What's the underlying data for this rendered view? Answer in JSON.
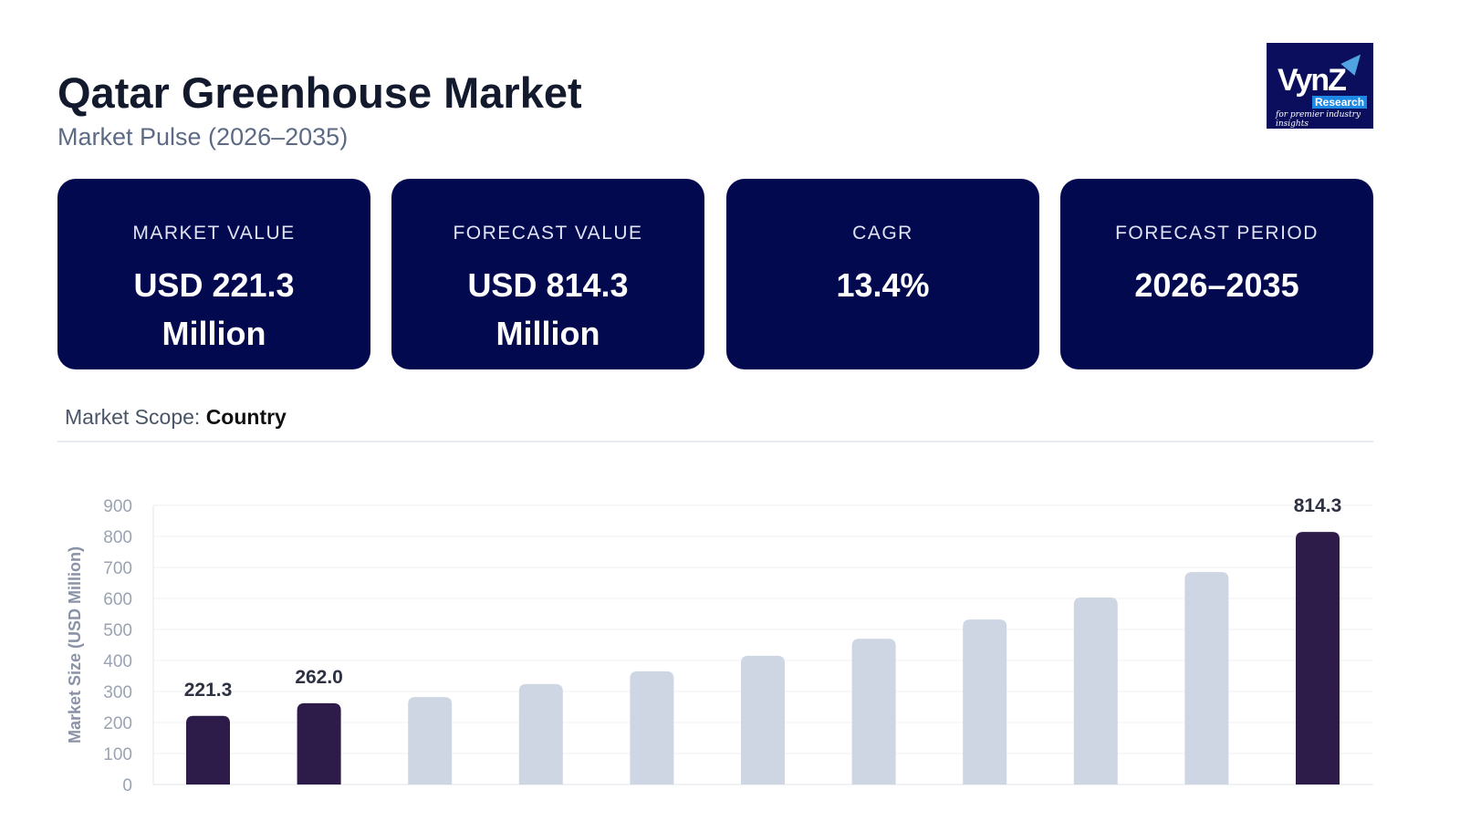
{
  "header": {
    "title": "Qatar Greenhouse Market",
    "subtitle": "Market Pulse (2026–2035)"
  },
  "logo": {
    "brand": "VynZ",
    "sub": "Research",
    "tagline": "for premier industry insights"
  },
  "cards": [
    {
      "label": "MARKET VALUE",
      "value": "USD 221.3",
      "value2": "Million"
    },
    {
      "label": "FORECAST VALUE",
      "value": "USD 814.3",
      "value2": "Million"
    },
    {
      "label": "CAGR",
      "value": "13.4%",
      "value2": ""
    },
    {
      "label": "FORECAST PERIOD",
      "value": "2026–2035",
      "value2": ""
    }
  ],
  "scope": {
    "label": "Market Scope:",
    "value": "Country"
  },
  "chart_data": {
    "type": "bar",
    "title": "",
    "xlabel": "",
    "ylabel": "Market Size (USD Million)",
    "ylim": [
      0,
      900
    ],
    "yticks": [
      "0",
      "100",
      "200",
      "300",
      "400",
      "500",
      "600",
      "700",
      "800",
      "900"
    ],
    "values": [
      221.3,
      262.0,
      282,
      324,
      365,
      415,
      470,
      532,
      603,
      685,
      814.3
    ],
    "highlight": [
      true,
      true,
      false,
      false,
      false,
      false,
      false,
      false,
      false,
      false,
      true
    ],
    "data_labels": [
      "221.3",
      "262.0",
      "",
      "",
      "",
      "",
      "",
      "",
      "",
      "",
      "814.3"
    ],
    "colors": {
      "highlight": "#2d1c4a",
      "normal": "#cdd6e2"
    },
    "grid": true
  }
}
